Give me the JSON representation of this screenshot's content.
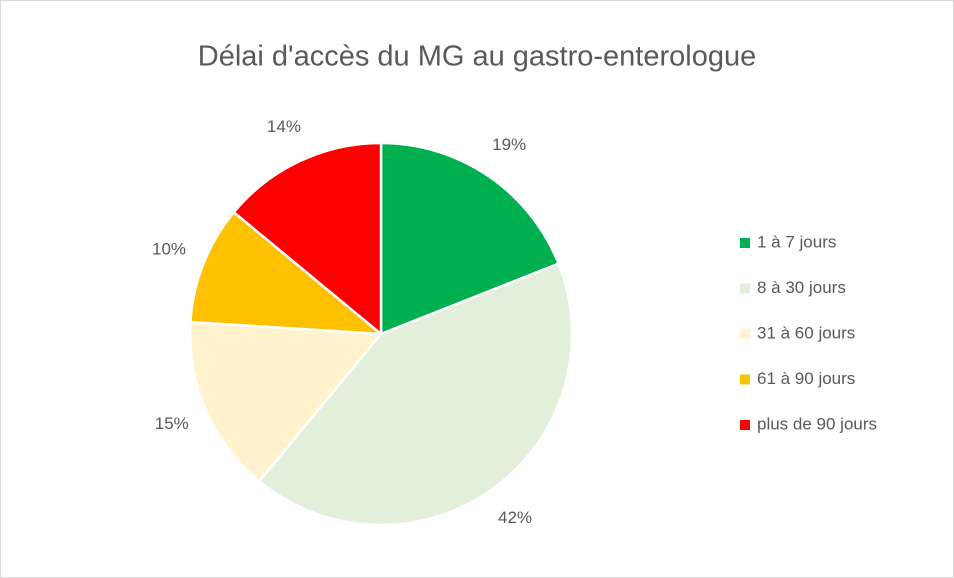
{
  "chart_data": {
    "type": "pie",
    "title": "Délai d'accès du MG au gastro-enterologue",
    "categories": [
      "1 à 7 jours",
      "8 à 30 jours",
      "31 à 60 jours",
      "61 à 90 jours",
      "plus de 90 jours"
    ],
    "values": [
      19,
      42,
      15,
      10,
      14
    ],
    "value_labels": [
      "19%",
      "42%",
      "15%",
      "10%",
      "14%"
    ],
    "colors": [
      "#00b050",
      "#e2efda",
      "#fff2cc",
      "#ffc000",
      "#ff0000"
    ],
    "legend": "right"
  }
}
